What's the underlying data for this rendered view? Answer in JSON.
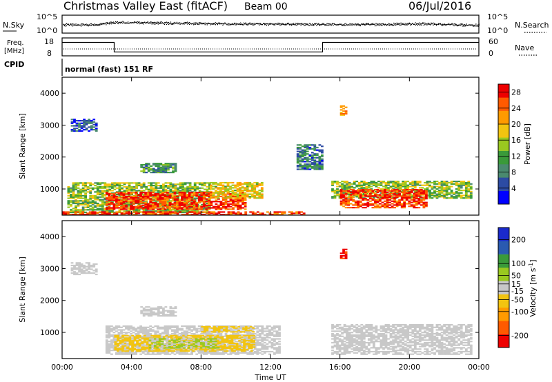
{
  "header": {
    "title": "Christmas Valley East (fitACF)",
    "beam": "Beam 00",
    "date": "06/Jul/2016"
  },
  "noise_panel": {
    "left_label": "N.Sky",
    "right_label": "N.Search",
    "left_ticks": [
      "10^5",
      "10^0"
    ],
    "right_ticks": [
      "10^5",
      "10^0"
    ]
  },
  "freq_panel": {
    "left_label_1": "Freq.",
    "left_label_2": "[MHz]",
    "right_label": "Nave",
    "left_ticks": [
      "18",
      "8"
    ],
    "right_ticks": [
      "60",
      "0"
    ]
  },
  "cpid": {
    "label": "CPID",
    "program": "normal (fast) 151 RF"
  },
  "x_axis": {
    "label": "Time UT",
    "ticks": [
      "00:00",
      "04:00",
      "08:00",
      "12:00",
      "16:00",
      "20:00",
      "00:00"
    ]
  },
  "colors": {
    "power": [
      "#0000ff",
      "#2c4ba3",
      "#4a8a6f",
      "#3a9a3a",
      "#9ac820",
      "#f2c410",
      "#ff9a00",
      "#ff5a00",
      "#ee0000"
    ],
    "velocity": [
      "#ee0000",
      "#ff5a00",
      "#ff9a00",
      "#f2c410",
      "#c8c8c8",
      "#9ac820",
      "#3a9a3a",
      "#2a5ab0",
      "#1a2acc"
    ]
  },
  "chart_data": [
    {
      "type": "line",
      "title": "N.Sky / N.Search",
      "x": [
        0,
        2,
        3,
        6,
        9,
        12,
        15,
        18,
        21,
        24
      ],
      "series": [
        {
          "name": "N.Sky",
          "values": [
            2.5,
            2.5,
            3.2,
            3.0,
            2.8,
            2.7,
            2.6,
            2.6,
            2.8,
            2.4
          ]
        },
        {
          "name": "N.Search",
          "values": [
            2.3,
            2.3,
            3.0,
            2.8,
            2.6,
            2.5,
            2.4,
            2.4,
            2.6,
            2.2
          ]
        }
      ],
      "ylim": [
        0,
        5
      ],
      "ylabel": "N.Sky"
    },
    {
      "type": "line",
      "title": "Freq. / Nave",
      "series": [
        {
          "name": "Freq.",
          "x": [
            0,
            3,
            3,
            15,
            15,
            24
          ],
          "values": [
            15.5,
            15.5,
            10.2,
            10.2,
            15.5,
            15.5
          ]
        },
        {
          "name": "Nave",
          "x": [
            0,
            24
          ],
          "values": [
            14,
            14
          ]
        }
      ],
      "ylim": [
        8,
        18
      ],
      "ylabel": "Freq. [MHz]"
    },
    {
      "type": "heatmap",
      "title": "Power",
      "xlabel": "Time UT",
      "ylabel": "Slant Range [km]",
      "xlim": [
        0,
        24
      ],
      "ylim": [
        180,
        4500
      ],
      "yticks": [
        1000,
        2000,
        3000,
        4000
      ],
      "colorbar": {
        "label": "Power [dB]",
        "ticks": [
          4,
          8,
          12,
          16,
          20,
          24,
          28
        ],
        "range": [
          0,
          30
        ]
      },
      "regions": [
        {
          "t0": 0.3,
          "t1": 8.5,
          "r0": 250,
          "r1": 1200,
          "value": 14
        },
        {
          "t0": 2.5,
          "t1": 10.5,
          "r0": 350,
          "r1": 900,
          "value": 27
        },
        {
          "t0": 8.5,
          "t1": 11.5,
          "r0": 700,
          "r1": 1200,
          "value": 18
        },
        {
          "t0": 15.5,
          "t1": 23.5,
          "r0": 700,
          "r1": 1250,
          "value": 14
        },
        {
          "t0": 16.0,
          "t1": 21.0,
          "r0": 400,
          "r1": 1000,
          "value": 27
        },
        {
          "t0": 0.0,
          "t1": 14.0,
          "r0": 180,
          "r1": 300,
          "value": 26
        },
        {
          "t0": 4.5,
          "t1": 6.5,
          "r0": 1500,
          "r1": 1800,
          "value": 10
        },
        {
          "t0": 13.5,
          "t1": 15.0,
          "r0": 1600,
          "r1": 2400,
          "value": 8
        },
        {
          "t0": 0.5,
          "t1": 2.0,
          "r0": 2800,
          "r1": 3200,
          "value": 5
        },
        {
          "t0": 16.0,
          "t1": 16.3,
          "r0": 3300,
          "r1": 3600,
          "value": 20
        }
      ]
    },
    {
      "type": "heatmap",
      "title": "Velocity",
      "xlabel": "Time UT",
      "ylabel": "Slant Range [km]",
      "xlim": [
        0,
        24
      ],
      "ylim": [
        180,
        4500
      ],
      "yticks": [
        1000,
        2000,
        3000,
        4000
      ],
      "colorbar": {
        "label": "Velocity [m s^-1]",
        "ticks": [
          200,
          100,
          50,
          15,
          -15,
          -50,
          -100,
          -200
        ],
        "range": [
          -250,
          250
        ]
      },
      "regions": [
        {
          "t0": 2.5,
          "t1": 12.5,
          "r0": 300,
          "r1": 1200,
          "value": 0
        },
        {
          "t0": 15.5,
          "t1": 23.5,
          "r0": 300,
          "r1": 1250,
          "value": 0
        },
        {
          "t0": 3.0,
          "t1": 11.0,
          "r0": 400,
          "r1": 900,
          "value": -40
        },
        {
          "t0": 5.0,
          "t1": 9.0,
          "r0": 500,
          "r1": 800,
          "value": 30
        },
        {
          "t0": 8.0,
          "t1": 11.0,
          "r0": 1000,
          "r1": 1200,
          "value": -40
        },
        {
          "t0": 4.5,
          "t1": 6.5,
          "r0": 1500,
          "r1": 1800,
          "value": 0
        },
        {
          "t0": 0.5,
          "t1": 2.0,
          "r0": 2800,
          "r1": 3200,
          "value": 0
        },
        {
          "t0": 16.0,
          "t1": 16.3,
          "r0": 3300,
          "r1": 3600,
          "value": -200
        }
      ]
    }
  ]
}
